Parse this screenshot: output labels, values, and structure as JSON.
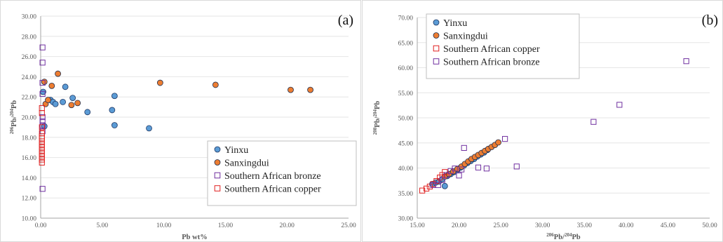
{
  "chart_data": [
    {
      "type": "scatter",
      "panel_label": "(a)",
      "xlabel": "Pb wt%",
      "ylabel_mass": "206",
      "ylabel_suffix": "Pb/",
      "ylabel_mass2": "204",
      "ylabel_suffix2": "Pb",
      "xlim": [
        0,
        25
      ],
      "ylim": [
        10,
        30
      ],
      "x_ticks": [
        "0.00",
        "5.00",
        "10.00",
        "15.00",
        "20.00",
        "25.00"
      ],
      "y_ticks": [
        "10.00",
        "12.00",
        "14.00",
        "16.00",
        "18.00",
        "20.00",
        "22.00",
        "24.00",
        "26.00",
        "28.00",
        "30.00"
      ],
      "legend_position": "bottom-right",
      "series": [
        {
          "name": "Yinxu",
          "marker": "circle",
          "fill": "#5b9bd5",
          "stroke": "#1f3864",
          "points": [
            [
              0.2,
              22.5
            ],
            [
              0.3,
              19.1
            ],
            [
              0.8,
              21.7
            ],
            [
              1.0,
              21.5
            ],
            [
              1.2,
              21.3
            ],
            [
              1.8,
              21.5
            ],
            [
              2.0,
              23.0
            ],
            [
              2.6,
              21.9
            ],
            [
              3.8,
              20.5
            ],
            [
              5.8,
              20.7
            ],
            [
              6.0,
              22.1
            ],
            [
              6.0,
              19.2
            ],
            [
              8.8,
              18.9
            ]
          ]
        },
        {
          "name": "Sanxingdui",
          "marker": "circle",
          "fill": "#ed7d31",
          "stroke": "#1f2f4f",
          "points": [
            [
              0.3,
              23.5
            ],
            [
              0.4,
              21.3
            ],
            [
              0.6,
              21.7
            ],
            [
              0.9,
              23.1
            ],
            [
              1.4,
              24.3
            ],
            [
              2.5,
              21.2
            ],
            [
              3.0,
              21.4
            ],
            [
              9.7,
              23.4
            ],
            [
              14.2,
              23.2
            ],
            [
              20.3,
              22.7
            ],
            [
              21.9,
              22.7
            ]
          ]
        },
        {
          "name": "Southern African bronze",
          "marker": "square",
          "fill": "none",
          "stroke": "#7030a0",
          "points": [
            [
              0.15,
              26.9
            ],
            [
              0.15,
              25.4
            ],
            [
              0.15,
              23.4
            ],
            [
              0.15,
              22.3
            ],
            [
              0.15,
              20.0
            ],
            [
              0.15,
              19.6
            ],
            [
              0.15,
              19.2
            ],
            [
              0.15,
              18.6
            ],
            [
              0.15,
              12.9
            ]
          ]
        },
        {
          "name": "Southern African copper",
          "marker": "square",
          "fill": "none",
          "stroke": "#e02020",
          "points": [
            [
              0.1,
              20.9
            ],
            [
              0.1,
              20.4
            ],
            [
              0.1,
              19.0
            ],
            [
              0.1,
              18.4
            ],
            [
              0.1,
              18.1
            ],
            [
              0.1,
              17.9
            ],
            [
              0.1,
              17.6
            ],
            [
              0.1,
              17.3
            ],
            [
              0.1,
              17.0
            ],
            [
              0.1,
              16.7
            ],
            [
              0.1,
              16.4
            ],
            [
              0.1,
              16.1
            ],
            [
              0.1,
              15.8
            ],
            [
              0.1,
              15.5
            ]
          ]
        }
      ]
    },
    {
      "type": "scatter",
      "panel_label": "(b)",
      "xlabel_mass": "206",
      "xlabel_suffix": "Pb/",
      "xlabel_mass2": "204",
      "xlabel_suffix2": "Pb",
      "ylabel_mass": "208",
      "ylabel_suffix": "Pb/",
      "ylabel_mass2": "204",
      "ylabel_suffix2": "Pb",
      "xlim": [
        15,
        50
      ],
      "ylim": [
        30,
        70
      ],
      "x_ticks": [
        "15.00",
        "20.00",
        "25.00",
        "30.00",
        "35.00",
        "40.00",
        "45.00",
        "50.00"
      ],
      "y_ticks": [
        "30.00",
        "35.00",
        "40.00",
        "45.00",
        "50.00",
        "55.00",
        "60.00",
        "65.00",
        "70.00"
      ],
      "legend_position": "top-left",
      "series": [
        {
          "name": "Yinxu",
          "marker": "circle",
          "fill": "#5b9bd5",
          "stroke": "#1f3864",
          "points": [
            [
              16.8,
              36.8
            ],
            [
              17.2,
              37.1
            ],
            [
              17.6,
              37.3
            ],
            [
              18.0,
              37.8
            ],
            [
              18.3,
              36.4
            ],
            [
              18.6,
              38.4
            ],
            [
              19.0,
              38.8
            ],
            [
              19.4,
              39.2
            ],
            [
              19.8,
              39.6
            ],
            [
              20.2,
              40.1
            ],
            [
              20.6,
              40.5
            ],
            [
              21.0,
              41.0
            ],
            [
              21.4,
              41.4
            ],
            [
              21.8,
              41.8
            ],
            [
              22.2,
              42.3
            ],
            [
              22.6,
              42.7
            ],
            [
              23.0,
              43.1
            ],
            [
              23.4,
              43.6
            ]
          ]
        },
        {
          "name": "Sanxingdui",
          "marker": "circle",
          "fill": "#ed7d31",
          "stroke": "#1f2f4f",
          "points": [
            [
              18.3,
              38.3
            ],
            [
              18.8,
              38.8
            ],
            [
              19.3,
              39.3
            ],
            [
              19.8,
              39.8
            ],
            [
              20.3,
              40.3
            ],
            [
              20.7,
              40.8
            ],
            [
              21.1,
              41.3
            ],
            [
              21.5,
              41.8
            ],
            [
              21.9,
              42.2
            ],
            [
              22.3,
              42.6
            ],
            [
              22.7,
              43.0
            ],
            [
              23.1,
              43.4
            ],
            [
              23.5,
              43.8
            ],
            [
              23.9,
              44.2
            ],
            [
              24.3,
              44.6
            ],
            [
              24.7,
              45.1
            ]
          ]
        },
        {
          "name": "Southern African copper",
          "marker": "square",
          "fill": "none",
          "stroke": "#e02020",
          "points": [
            [
              15.6,
              35.5
            ],
            [
              16.1,
              35.9
            ],
            [
              16.5,
              36.3
            ],
            [
              16.9,
              36.8
            ],
            [
              17.3,
              37.4
            ],
            [
              17.7,
              38.1
            ],
            [
              18.0,
              38.6
            ],
            [
              18.3,
              39.2
            ]
          ]
        },
        {
          "name": "Southern African bronze",
          "marker": "square",
          "fill": "none",
          "stroke": "#7030a0",
          "points": [
            [
              16.9,
              36.6
            ],
            [
              17.5,
              36.6
            ],
            [
              18.0,
              37.6
            ],
            [
              18.5,
              38.6
            ],
            [
              19.0,
              39.4
            ],
            [
              19.5,
              39.9
            ],
            [
              20.0,
              38.5
            ],
            [
              20.3,
              39.7
            ],
            [
              20.6,
              44.0
            ],
            [
              22.3,
              40.1
            ],
            [
              23.3,
              39.9
            ],
            [
              25.5,
              45.8
            ],
            [
              26.9,
              40.3
            ],
            [
              36.1,
              49.2
            ],
            [
              39.2,
              52.6
            ],
            [
              47.2,
              61.3
            ]
          ]
        }
      ]
    }
  ]
}
